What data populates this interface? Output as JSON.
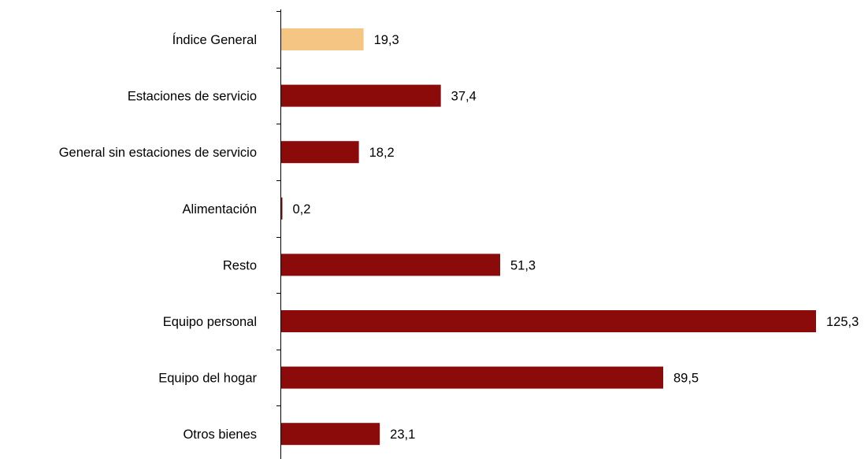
{
  "chart_data": {
    "type": "bar",
    "orientation": "horizontal",
    "title": "",
    "xlabel": "",
    "ylabel": "",
    "xlim": [
      0,
      125.3
    ],
    "grid": false,
    "legend": "none",
    "categories": [
      "Índice General",
      "Estaciones de servicio",
      "General sin estaciones de servicio",
      "Alimentación",
      "Resto",
      "Equipo personal",
      "Equipo del hogar",
      "Otros bienes"
    ],
    "values": [
      19.3,
      37.4,
      18.2,
      0.2,
      51.3,
      125.3,
      89.5,
      23.1
    ],
    "value_labels": [
      "19,3",
      "37,4",
      "18,2",
      "0,2",
      "51,3",
      "125,3",
      "89,5",
      "23,1"
    ],
    "highlight_index": 0
  },
  "colors": {
    "highlight_bar": "#F5C584",
    "bar": "#8B0A0A",
    "axis": "#000000"
  }
}
